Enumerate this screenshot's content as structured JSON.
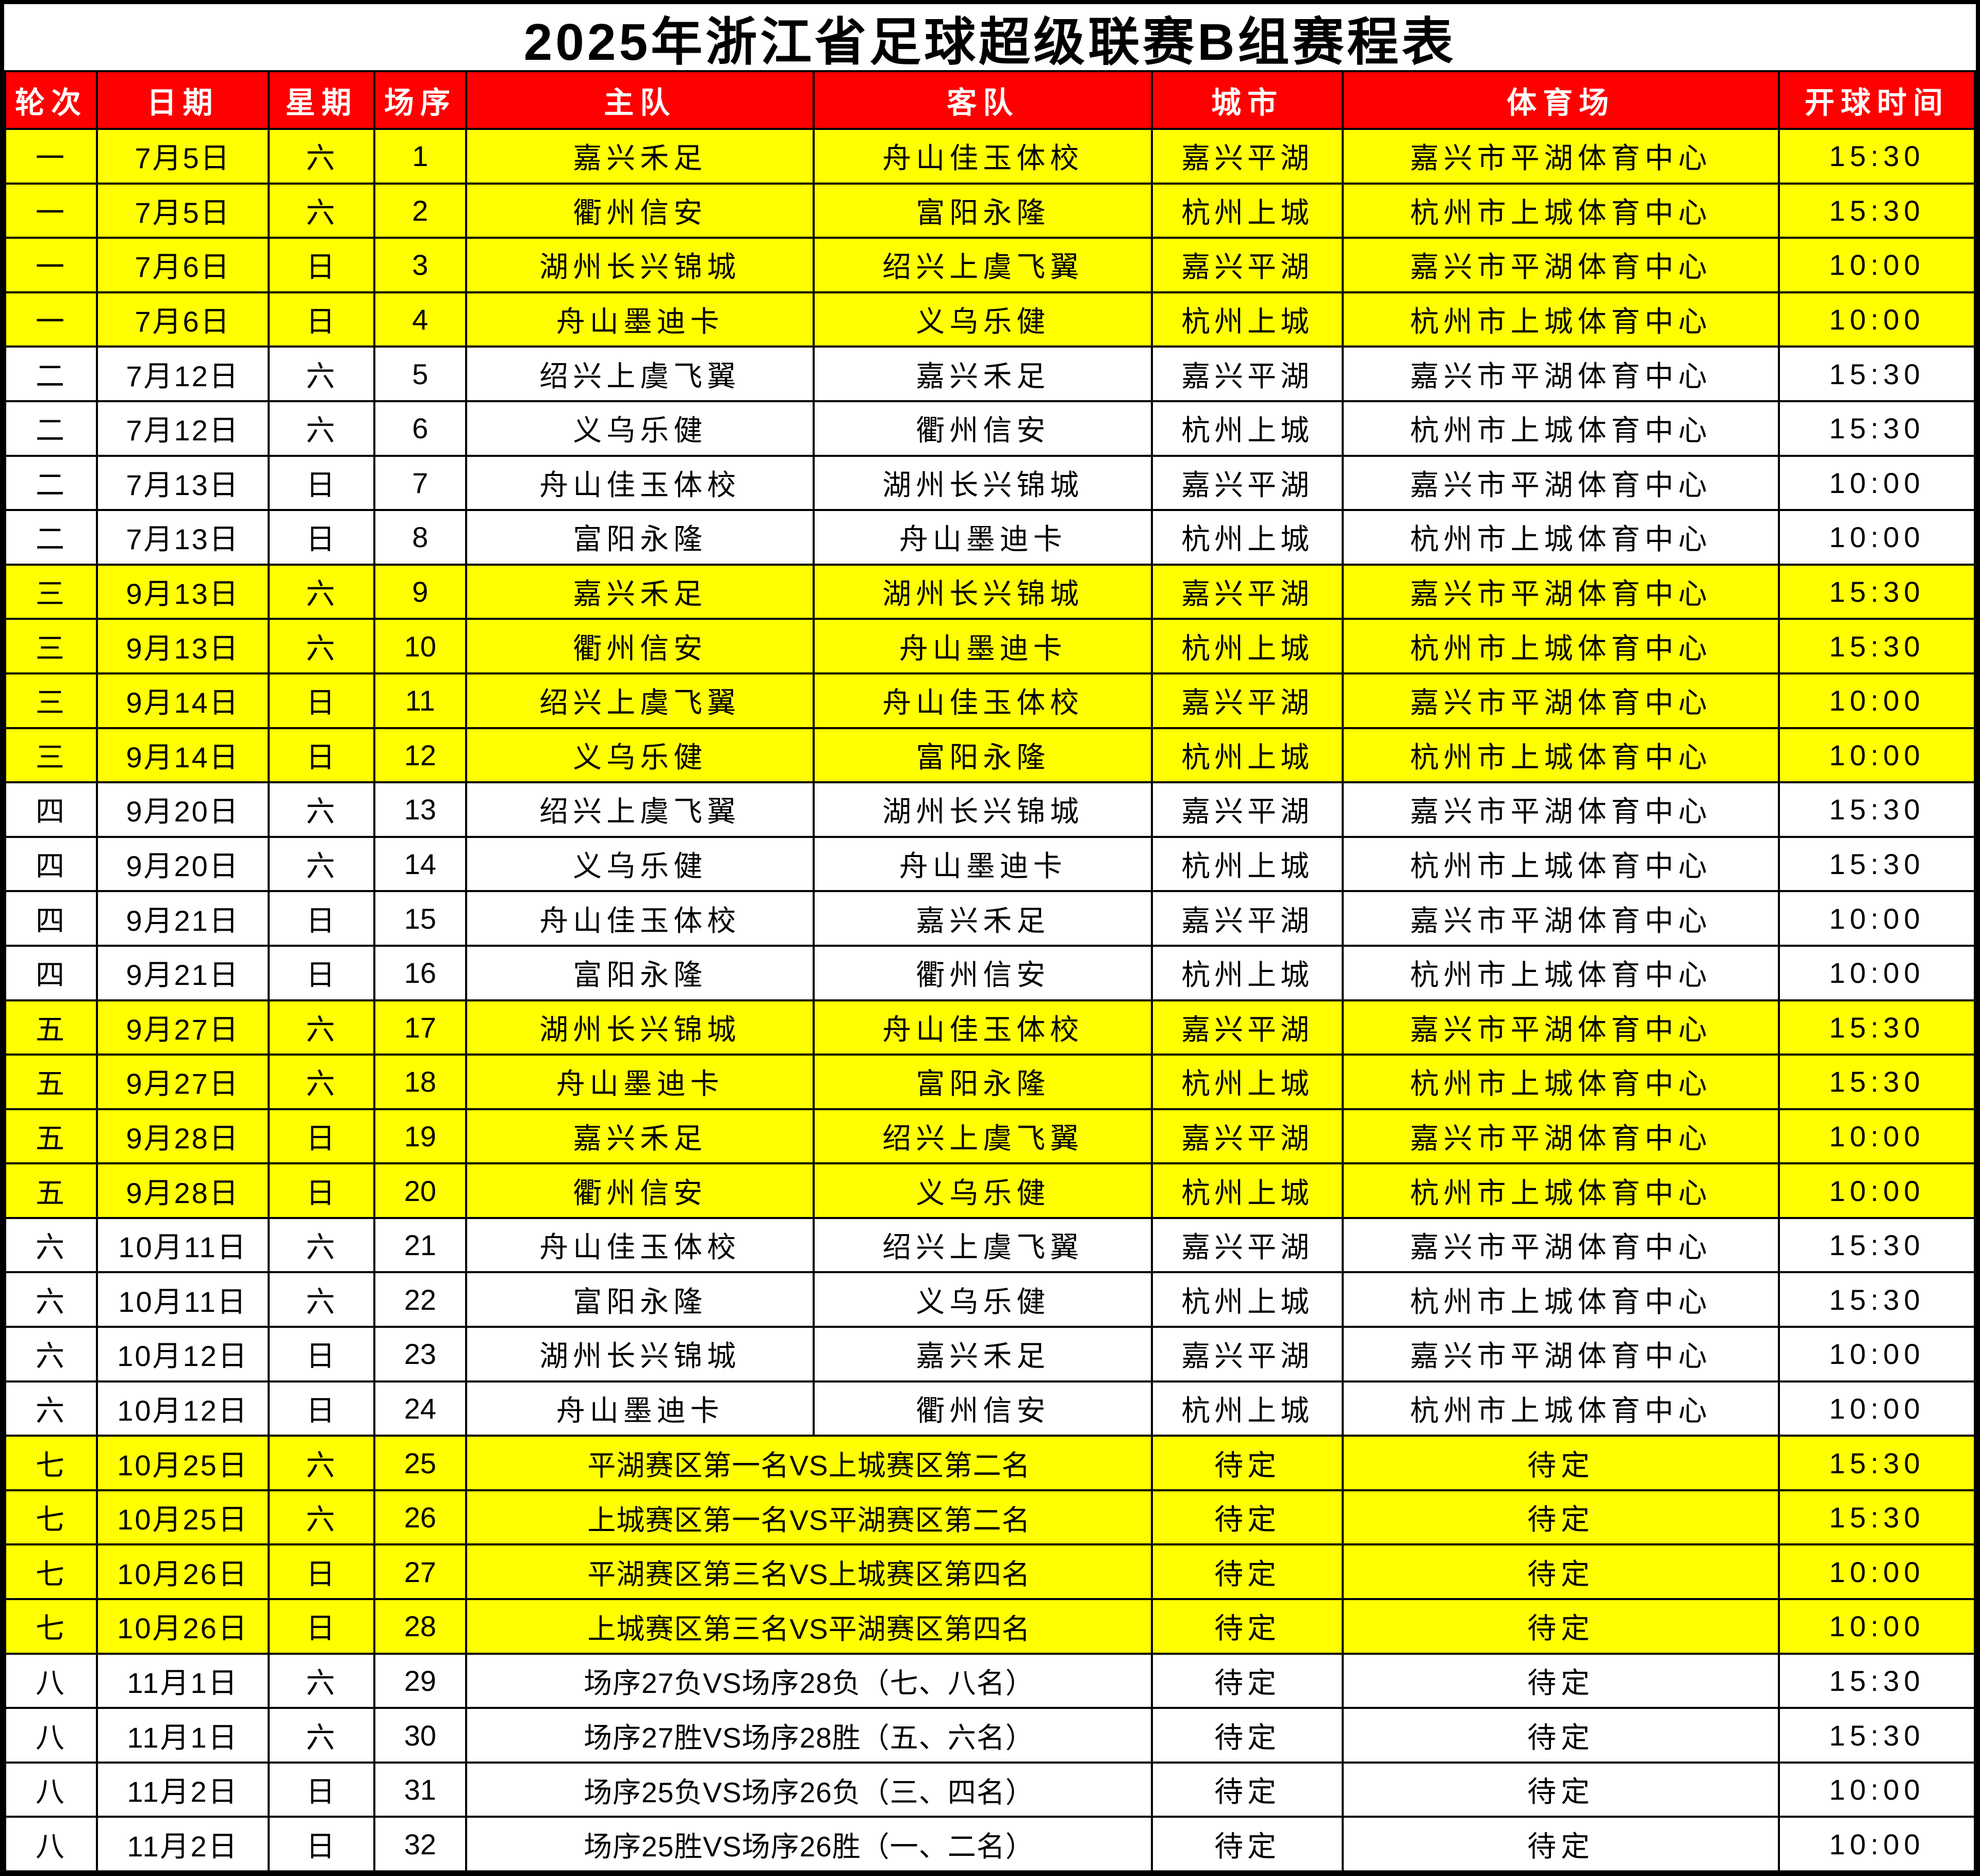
{
  "title": "2025年浙江省足球超级联赛B组赛程表",
  "headers": [
    "轮次",
    "日期",
    "星期",
    "场序",
    "主队",
    "客队",
    "城市",
    "体育场",
    "开球时间"
  ],
  "colors": {
    "header_bg": "#FF0000",
    "header_text": "#FFFFFF",
    "highlight_row_bg": "#FFFF00",
    "row_bg": "#FFFFFF",
    "grid_line": "#000000"
  },
  "rows": [
    {
      "round": "一",
      "date": "7月5日",
      "weekday": "六",
      "match_no": "1",
      "home": "嘉兴禾足",
      "away": "舟山佳玉体校",
      "city": "嘉兴平湖",
      "stadium": "嘉兴市平湖体育中心",
      "time": "15:30",
      "highlight": true,
      "merged": false
    },
    {
      "round": "一",
      "date": "7月5日",
      "weekday": "六",
      "match_no": "2",
      "home": "衢州信安",
      "away": "富阳永隆",
      "city": "杭州上城",
      "stadium": "杭州市上城体育中心",
      "time": "15:30",
      "highlight": true,
      "merged": false
    },
    {
      "round": "一",
      "date": "7月6日",
      "weekday": "日",
      "match_no": "3",
      "home": "湖州长兴锦城",
      "away": "绍兴上虞飞翼",
      "city": "嘉兴平湖",
      "stadium": "嘉兴市平湖体育中心",
      "time": "10:00",
      "highlight": true,
      "merged": false
    },
    {
      "round": "一",
      "date": "7月6日",
      "weekday": "日",
      "match_no": "4",
      "home": "舟山墨迪卡",
      "away": "义乌乐健",
      "city": "杭州上城",
      "stadium": "杭州市上城体育中心",
      "time": "10:00",
      "highlight": true,
      "merged": false
    },
    {
      "round": "二",
      "date": "7月12日",
      "weekday": "六",
      "match_no": "5",
      "home": "绍兴上虞飞翼",
      "away": "嘉兴禾足",
      "city": "嘉兴平湖",
      "stadium": "嘉兴市平湖体育中心",
      "time": "15:30",
      "highlight": false,
      "merged": false
    },
    {
      "round": "二",
      "date": "7月12日",
      "weekday": "六",
      "match_no": "6",
      "home": "义乌乐健",
      "away": "衢州信安",
      "city": "杭州上城",
      "stadium": "杭州市上城体育中心",
      "time": "15:30",
      "highlight": false,
      "merged": false
    },
    {
      "round": "二",
      "date": "7月13日",
      "weekday": "日",
      "match_no": "7",
      "home": "舟山佳玉体校",
      "away": "湖州长兴锦城",
      "city": "嘉兴平湖",
      "stadium": "嘉兴市平湖体育中心",
      "time": "10:00",
      "highlight": false,
      "merged": false
    },
    {
      "round": "二",
      "date": "7月13日",
      "weekday": "日",
      "match_no": "8",
      "home": "富阳永隆",
      "away": "舟山墨迪卡",
      "city": "杭州上城",
      "stadium": "杭州市上城体育中心",
      "time": "10:00",
      "highlight": false,
      "merged": false
    },
    {
      "round": "三",
      "date": "9月13日",
      "weekday": "六",
      "match_no": "9",
      "home": "嘉兴禾足",
      "away": "湖州长兴锦城",
      "city": "嘉兴平湖",
      "stadium": "嘉兴市平湖体育中心",
      "time": "15:30",
      "highlight": true,
      "merged": false
    },
    {
      "round": "三",
      "date": "9月13日",
      "weekday": "六",
      "match_no": "10",
      "home": "衢州信安",
      "away": "舟山墨迪卡",
      "city": "杭州上城",
      "stadium": "杭州市上城体育中心",
      "time": "15:30",
      "highlight": true,
      "merged": false
    },
    {
      "round": "三",
      "date": "9月14日",
      "weekday": "日",
      "match_no": "11",
      "home": "绍兴上虞飞翼",
      "away": "舟山佳玉体校",
      "city": "嘉兴平湖",
      "stadium": "嘉兴市平湖体育中心",
      "time": "10:00",
      "highlight": true,
      "merged": false
    },
    {
      "round": "三",
      "date": "9月14日",
      "weekday": "日",
      "match_no": "12",
      "home": "义乌乐健",
      "away": "富阳永隆",
      "city": "杭州上城",
      "stadium": "杭州市上城体育中心",
      "time": "10:00",
      "highlight": true,
      "merged": false
    },
    {
      "round": "四",
      "date": "9月20日",
      "weekday": "六",
      "match_no": "13",
      "home": "绍兴上虞飞翼",
      "away": "湖州长兴锦城",
      "city": "嘉兴平湖",
      "stadium": "嘉兴市平湖体育中心",
      "time": "15:30",
      "highlight": false,
      "merged": false
    },
    {
      "round": "四",
      "date": "9月20日",
      "weekday": "六",
      "match_no": "14",
      "home": "义乌乐健",
      "away": "舟山墨迪卡",
      "city": "杭州上城",
      "stadium": "杭州市上城体育中心",
      "time": "15:30",
      "highlight": false,
      "merged": false
    },
    {
      "round": "四",
      "date": "9月21日",
      "weekday": "日",
      "match_no": "15",
      "home": "舟山佳玉体校",
      "away": "嘉兴禾足",
      "city": "嘉兴平湖",
      "stadium": "嘉兴市平湖体育中心",
      "time": "10:00",
      "highlight": false,
      "merged": false
    },
    {
      "round": "四",
      "date": "9月21日",
      "weekday": "日",
      "match_no": "16",
      "home": "富阳永隆",
      "away": "衢州信安",
      "city": "杭州上城",
      "stadium": "杭州市上城体育中心",
      "time": "10:00",
      "highlight": false,
      "merged": false
    },
    {
      "round": "五",
      "date": "9月27日",
      "weekday": "六",
      "match_no": "17",
      "home": "湖州长兴锦城",
      "away": "舟山佳玉体校",
      "city": "嘉兴平湖",
      "stadium": "嘉兴市平湖体育中心",
      "time": "15:30",
      "highlight": true,
      "merged": false
    },
    {
      "round": "五",
      "date": "9月27日",
      "weekday": "六",
      "match_no": "18",
      "home": "舟山墨迪卡",
      "away": "富阳永隆",
      "city": "杭州上城",
      "stadium": "杭州市上城体育中心",
      "time": "15:30",
      "highlight": true,
      "merged": false
    },
    {
      "round": "五",
      "date": "9月28日",
      "weekday": "日",
      "match_no": "19",
      "home": "嘉兴禾足",
      "away": "绍兴上虞飞翼",
      "city": "嘉兴平湖",
      "stadium": "嘉兴市平湖体育中心",
      "time": "10:00",
      "highlight": true,
      "merged": false
    },
    {
      "round": "五",
      "date": "9月28日",
      "weekday": "日",
      "match_no": "20",
      "home": "衢州信安",
      "away": "义乌乐健",
      "city": "杭州上城",
      "stadium": "杭州市上城体育中心",
      "time": "10:00",
      "highlight": true,
      "merged": false
    },
    {
      "round": "六",
      "date": "10月11日",
      "weekday": "六",
      "match_no": "21",
      "home": "舟山佳玉体校",
      "away": "绍兴上虞飞翼",
      "city": "嘉兴平湖",
      "stadium": "嘉兴市平湖体育中心",
      "time": "15:30",
      "highlight": false,
      "merged": false
    },
    {
      "round": "六",
      "date": "10月11日",
      "weekday": "六",
      "match_no": "22",
      "home": "富阳永隆",
      "away": "义乌乐健",
      "city": "杭州上城",
      "stadium": "杭州市上城体育中心",
      "time": "15:30",
      "highlight": false,
      "merged": false
    },
    {
      "round": "六",
      "date": "10月12日",
      "weekday": "日",
      "match_no": "23",
      "home": "湖州长兴锦城",
      "away": "嘉兴禾足",
      "city": "嘉兴平湖",
      "stadium": "嘉兴市平湖体育中心",
      "time": "10:00",
      "highlight": false,
      "merged": false
    },
    {
      "round": "六",
      "date": "10月12日",
      "weekday": "日",
      "match_no": "24",
      "home": "舟山墨迪卡",
      "away": "衢州信安",
      "city": "杭州上城",
      "stadium": "杭州市上城体育中心",
      "time": "10:00",
      "highlight": false,
      "merged": false
    },
    {
      "round": "七",
      "date": "10月25日",
      "weekday": "六",
      "match_no": "25",
      "matchup": "平湖赛区第一名VS上城赛区第二名",
      "city": "待定",
      "stadium": "待定",
      "time": "15:30",
      "highlight": true,
      "merged": true
    },
    {
      "round": "七",
      "date": "10月25日",
      "weekday": "六",
      "match_no": "26",
      "matchup": "上城赛区第一名VS平湖赛区第二名",
      "city": "待定",
      "stadium": "待定",
      "time": "15:30",
      "highlight": true,
      "merged": true
    },
    {
      "round": "七",
      "date": "10月26日",
      "weekday": "日",
      "match_no": "27",
      "matchup": "平湖赛区第三名VS上城赛区第四名",
      "city": "待定",
      "stadium": "待定",
      "time": "10:00",
      "highlight": true,
      "merged": true
    },
    {
      "round": "七",
      "date": "10月26日",
      "weekday": "日",
      "match_no": "28",
      "matchup": "上城赛区第三名VS平湖赛区第四名",
      "city": "待定",
      "stadium": "待定",
      "time": "10:00",
      "highlight": true,
      "merged": true
    },
    {
      "round": "八",
      "date": "11月1日",
      "weekday": "六",
      "match_no": "29",
      "matchup": "场序27负VS场序28负（七、八名）",
      "city": "待定",
      "stadium": "待定",
      "time": "15:30",
      "highlight": false,
      "merged": true
    },
    {
      "round": "八",
      "date": "11月1日",
      "weekday": "六",
      "match_no": "30",
      "matchup": "场序27胜VS场序28胜（五、六名）",
      "city": "待定",
      "stadium": "待定",
      "time": "15:30",
      "highlight": false,
      "merged": true
    },
    {
      "round": "八",
      "date": "11月2日",
      "weekday": "日",
      "match_no": "31",
      "matchup": "场序25负VS场序26负（三、四名）",
      "city": "待定",
      "stadium": "待定",
      "time": "10:00",
      "highlight": false,
      "merged": true
    },
    {
      "round": "八",
      "date": "11月2日",
      "weekday": "日",
      "match_no": "32",
      "matchup": "场序25胜VS场序26胜（一、二名）",
      "city": "待定",
      "stadium": "待定",
      "time": "10:00",
      "highlight": false,
      "merged": true
    }
  ]
}
